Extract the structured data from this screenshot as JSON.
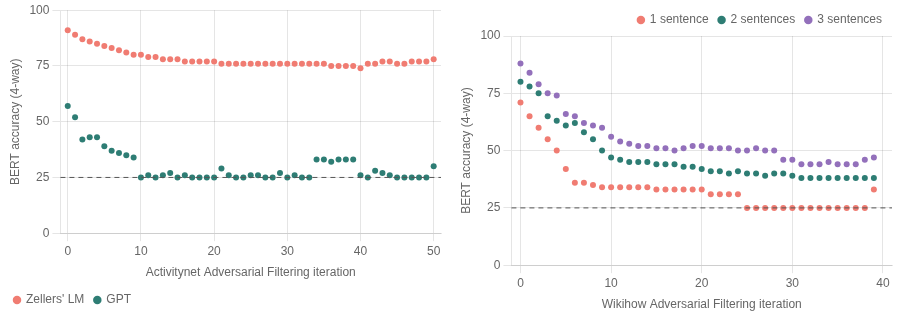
{
  "chart_data": [
    {
      "type": "scatter",
      "xlabel": "Activitynet Adversarial Filtering iteration",
      "ylabel": "BERT accuracy (4-way)",
      "xlim": [
        -1,
        51
      ],
      "ylim": [
        0,
        100
      ],
      "xticks": [
        0,
        10,
        20,
        30,
        40,
        50
      ],
      "yticks": [
        0,
        25,
        50,
        75,
        100
      ],
      "grid": true,
      "legend": "lower left",
      "marker": "circle",
      "annotations": [
        {
          "type": "hline",
          "y": 25,
          "line_style": "dashed"
        }
      ],
      "series": [
        {
          "name": "Zellers' LM",
          "color": "#f07c72",
          "x": [
            0,
            1,
            2,
            3,
            4,
            5,
            6,
            7,
            8,
            9,
            10,
            11,
            12,
            13,
            14,
            15,
            16,
            17,
            18,
            19,
            20,
            21,
            22,
            23,
            24,
            25,
            26,
            27,
            28,
            29,
            30,
            31,
            32,
            33,
            34,
            35,
            36,
            37,
            38,
            39,
            40,
            41,
            42,
            43,
            44,
            45,
            46,
            47,
            48,
            49,
            50
          ],
          "values": [
            91,
            89,
            87,
            86,
            85,
            84,
            83,
            82,
            81,
            80,
            80,
            79,
            79,
            78,
            78,
            78,
            77,
            77,
            77,
            77,
            77,
            76,
            76,
            76,
            76,
            76,
            76,
            76,
            76,
            76,
            76,
            76,
            76,
            76,
            76,
            76,
            75,
            75,
            75,
            75,
            74,
            76,
            76,
            77,
            77,
            76,
            76,
            77,
            77,
            77,
            78
          ]
        },
        {
          "name": "GPT",
          "color": "#2e7d74",
          "x": [
            0,
            1,
            2,
            3,
            4,
            5,
            6,
            7,
            8,
            9,
            10,
            11,
            12,
            13,
            14,
            15,
            16,
            17,
            18,
            19,
            20,
            21,
            22,
            23,
            24,
            25,
            26,
            27,
            28,
            29,
            30,
            31,
            32,
            33,
            34,
            35,
            36,
            37,
            38,
            39,
            40,
            41,
            42,
            43,
            44,
            45,
            46,
            47,
            48,
            49,
            50
          ],
          "values": [
            57,
            52,
            42,
            43,
            43,
            39,
            37,
            36,
            35,
            34,
            25,
            26,
            25,
            26,
            27,
            25,
            26,
            25,
            25,
            25,
            25,
            29,
            26,
            25,
            25,
            26,
            26,
            25,
            25,
            27,
            25,
            26,
            25,
            25,
            33,
            33,
            32,
            33,
            33,
            33,
            26,
            25,
            28,
            27,
            26,
            25,
            25,
            25,
            25,
            25,
            30
          ]
        }
      ]
    },
    {
      "type": "scatter",
      "xlabel": "Wikihow Adversarial Filtering iteration",
      "ylabel": "BERT accuracy (4-way)",
      "xlim": [
        -1,
        41
      ],
      "ylim": [
        0,
        100
      ],
      "xticks": [
        0,
        10,
        20,
        30,
        40
      ],
      "yticks": [
        0,
        25,
        50,
        75,
        100
      ],
      "grid": true,
      "legend": "upper right",
      "marker": "circle",
      "annotations": [
        {
          "type": "hline",
          "y": 25,
          "line_style": "dashed"
        }
      ],
      "series": [
        {
          "name": "1 sentence",
          "color": "#f07c72",
          "x": [
            0,
            1,
            2,
            3,
            4,
            5,
            6,
            7,
            8,
            9,
            10,
            11,
            12,
            13,
            14,
            15,
            16,
            17,
            18,
            19,
            20,
            21,
            22,
            23,
            24,
            25,
            26,
            27,
            28,
            29,
            30,
            31,
            32,
            33,
            34,
            35,
            36,
            37,
            38,
            39
          ],
          "values": [
            71,
            65,
            60,
            55,
            50,
            42,
            36,
            36,
            35,
            34,
            34,
            34,
            34,
            34,
            34,
            33,
            33,
            33,
            33,
            33,
            33,
            31,
            31,
            31,
            31,
            25,
            25,
            25,
            25,
            25,
            25,
            25,
            25,
            25,
            25,
            25,
            25,
            25,
            25,
            33
          ]
        },
        {
          "name": "2 sentences",
          "color": "#2e7d74",
          "x": [
            0,
            1,
            2,
            3,
            4,
            5,
            6,
            7,
            8,
            9,
            10,
            11,
            12,
            13,
            14,
            15,
            16,
            17,
            18,
            19,
            20,
            21,
            22,
            23,
            24,
            25,
            26,
            27,
            28,
            29,
            30,
            31,
            32,
            33,
            34,
            35,
            36,
            37,
            38,
            39
          ],
          "values": [
            80,
            78,
            75,
            65,
            63,
            61,
            62,
            58,
            55,
            50,
            47,
            46,
            45,
            45,
            45,
            44,
            44,
            44,
            43,
            43,
            42,
            41,
            41,
            40,
            41,
            40,
            40,
            39,
            40,
            40,
            39,
            38,
            38,
            38,
            38,
            38,
            38,
            38,
            38,
            38
          ]
        },
        {
          "name": "3 sentences",
          "color": "#9370bb",
          "x": [
            0,
            1,
            2,
            3,
            4,
            5,
            6,
            7,
            8,
            9,
            10,
            11,
            12,
            13,
            14,
            15,
            16,
            17,
            18,
            19,
            20,
            21,
            22,
            23,
            24,
            25,
            26,
            27,
            28,
            29,
            30,
            31,
            32,
            33,
            34,
            35,
            36,
            37,
            38,
            39
          ],
          "values": [
            88,
            84,
            79,
            75,
            74,
            66,
            65,
            62,
            61,
            60,
            56,
            54,
            53,
            52,
            52,
            51,
            51,
            50,
            51,
            52,
            52,
            51,
            51,
            51,
            50,
            50,
            51,
            50,
            50,
            46,
            46,
            44,
            44,
            44,
            45,
            44,
            44,
            44,
            46,
            47
          ]
        }
      ]
    }
  ]
}
